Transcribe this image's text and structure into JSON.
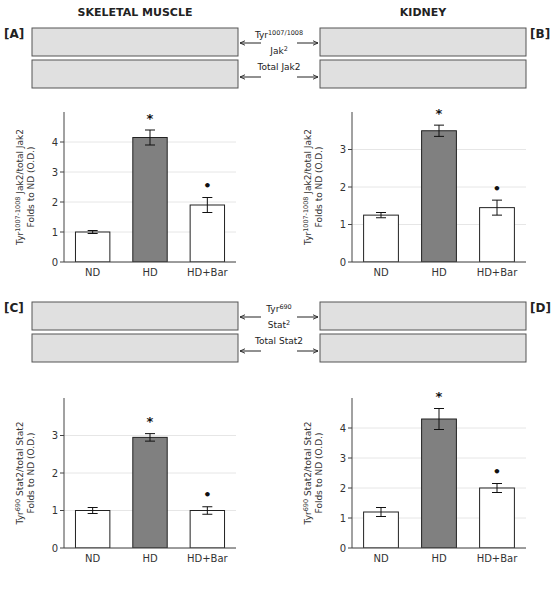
{
  "chart_data": [
    {
      "type": "bar",
      "title": "SKELETAL MUSCLE",
      "categories": [
        "ND",
        "HD",
        "HD+Bar"
      ],
      "values": [
        1.0,
        4.15,
        1.9
      ],
      "errors": [
        0.05,
        0.25,
        0.25
      ],
      "colors": [
        "white",
        "#808080",
        "white"
      ],
      "ylim": [
        0,
        5
      ],
      "yticks": [
        0,
        1,
        2,
        3,
        4
      ],
      "ylabel": "Tyr1007-1008 Jak2/total Jak2\nFolds to ND (O.D.)",
      "annotations": [
        {
          "text": "[A]"
        },
        {
          "text": "Tyr1007/1008"
        },
        {
          "text": "Jak2"
        },
        {
          "text": "Total Jak2"
        },
        {
          "text": "*",
          "x": "HD"
        },
        {
          "text": "•",
          "x": "HD+Bar"
        }
      ]
    },
    {
      "type": "bar",
      "title": "KIDNEY",
      "categories": [
        "ND",
        "HD",
        "HD+Bar"
      ],
      "values": [
        1.25,
        3.5,
        1.45
      ],
      "errors": [
        0.07,
        0.15,
        0.2
      ],
      "colors": [
        "white",
        "#808080",
        "white"
      ],
      "ylim": [
        0,
        4
      ],
      "yticks": [
        0,
        1,
        2,
        3
      ],
      "ylabel": "Tyr1007-1008 Jak2/total Jak2\nFolds to ND (O.D.)",
      "annotations": [
        {
          "text": "[B]"
        },
        {
          "text": "*",
          "x": "HD"
        },
        {
          "text": "•",
          "x": "HD+Bar"
        }
      ]
    },
    {
      "type": "bar",
      "categories": [
        "ND",
        "HD",
        "HD+Bar"
      ],
      "values": [
        1.0,
        2.95,
        1.0
      ],
      "errors": [
        0.08,
        0.1,
        0.1
      ],
      "colors": [
        "white",
        "#808080",
        "white"
      ],
      "ylim": [
        0,
        4
      ],
      "yticks": [
        0,
        1,
        2,
        3
      ],
      "ylabel": "Tyr690 Stat2/total Stat2\nFolds to ND (O.D.)",
      "annotations": [
        {
          "text": "[C]"
        },
        {
          "text": "Tyr690"
        },
        {
          "text": "Stat2"
        },
        {
          "text": "Total Stat2"
        },
        {
          "text": "*",
          "x": "HD"
        },
        {
          "text": "•",
          "x": "HD+Bar"
        }
      ]
    },
    {
      "type": "bar",
      "categories": [
        "ND",
        "HD",
        "HD+Bar"
      ],
      "values": [
        1.2,
        4.3,
        2.0
      ],
      "errors": [
        0.15,
        0.35,
        0.15
      ],
      "colors": [
        "white",
        "#808080",
        "white"
      ],
      "ylim": [
        0,
        5
      ],
      "yticks": [
        0,
        1,
        2,
        3,
        4
      ],
      "ylabel": "Tyr690 Stat2/total Stat2\nFolds to ND (O.D.)",
      "annotations": [
        {
          "text": "[D]"
        },
        {
          "text": "*",
          "x": "HD"
        },
        {
          "text": "•",
          "x": "HD+Bar"
        }
      ]
    }
  ]
}
